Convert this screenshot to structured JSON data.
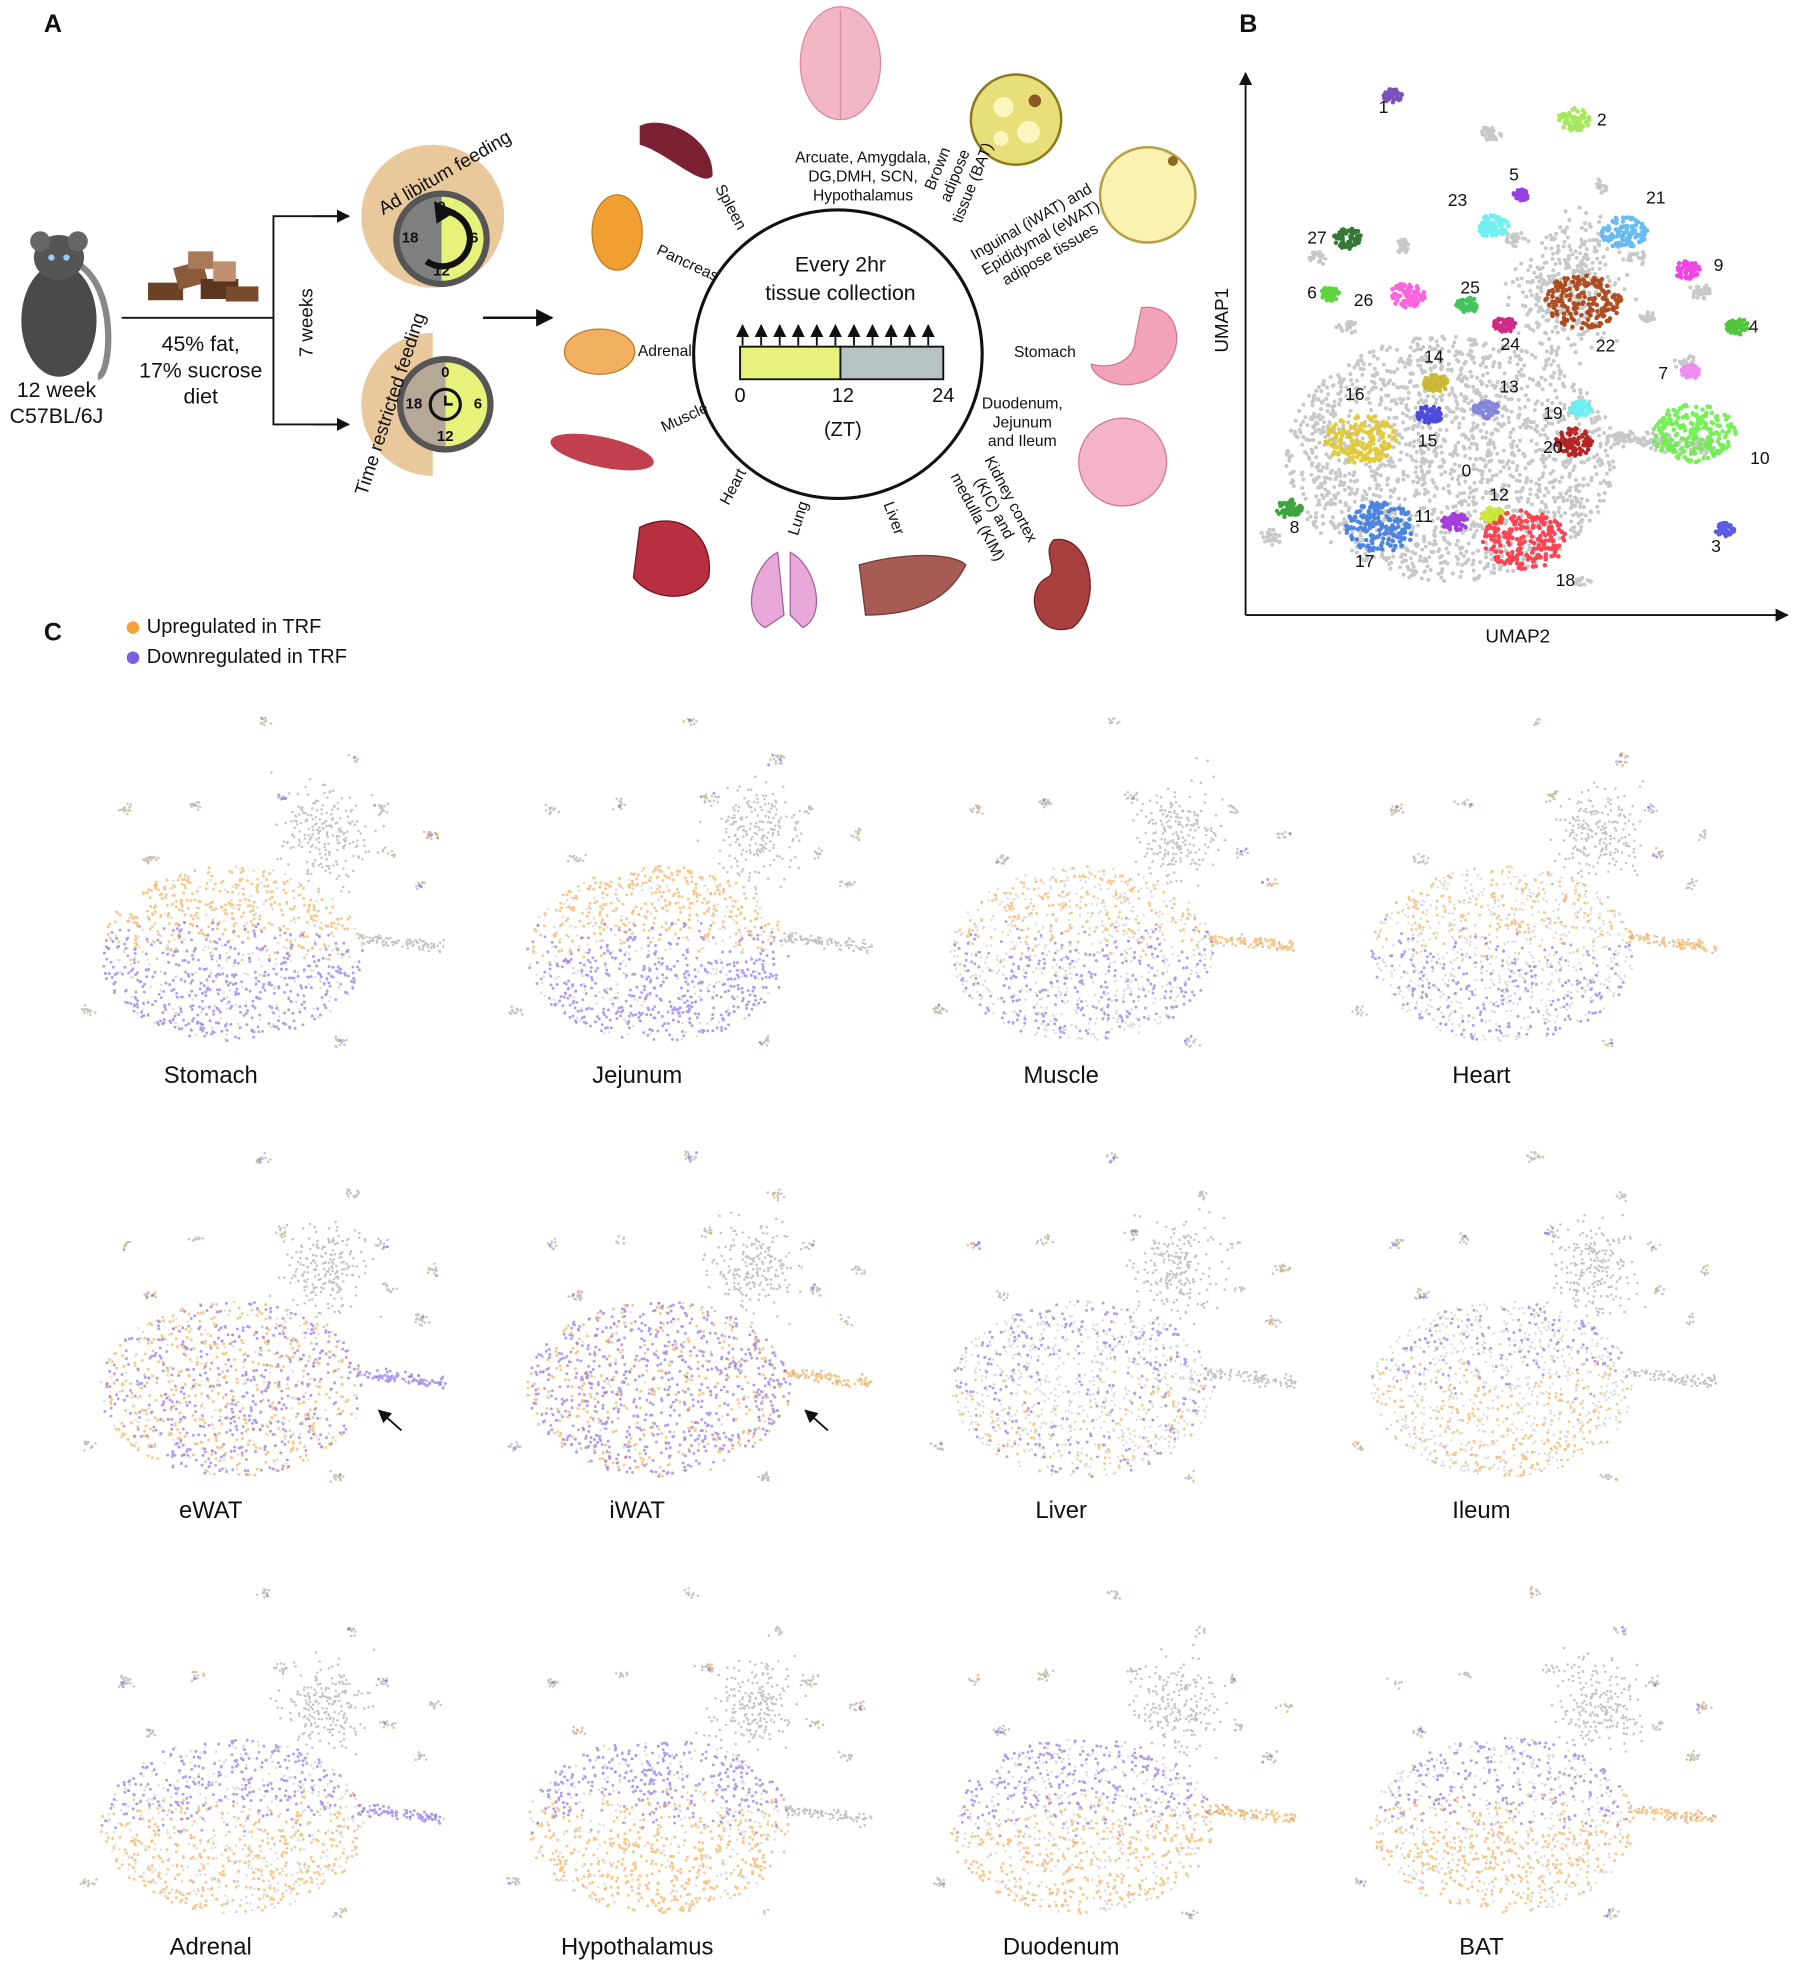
{
  "panel_labels": {
    "a": "A",
    "b": "B",
    "c": "C"
  },
  "panel_a": {
    "mouse_label": [
      "12 week",
      "C57BL/6J"
    ],
    "diet_label": [
      "45% fat,",
      "17% sucrose",
      "diet"
    ],
    "duration": "7 weeks",
    "feeding_groups": [
      {
        "name": "Ad libitum feeding",
        "clock_labels": [
          "0",
          "6",
          "12",
          "18"
        ]
      },
      {
        "name": "Time restricted feeding",
        "clock_labels": [
          "0",
          "6",
          "12",
          "18"
        ]
      }
    ],
    "collection": {
      "title": [
        "Every 2hr",
        "tissue collection"
      ],
      "ticks": [
        "0",
        "12",
        "24"
      ],
      "unit": "(ZT)"
    },
    "tissues": [
      {
        "lines": [
          "Arcuate, Amygdala,",
          "DG,DMH, SCN,",
          "Hypothalamus"
        ]
      },
      {
        "lines": [
          "Brown",
          "adipose",
          "tissue (BAT)"
        ]
      },
      {
        "lines": [
          "Inguinal (iWAT) and",
          "Epididymal (eWAT)",
          "adipose tissues"
        ]
      },
      {
        "lines": [
          "Stomach"
        ]
      },
      {
        "lines": [
          "Duodenum,",
          "Jejunum",
          "and Ileum"
        ]
      },
      {
        "lines": [
          "Kidney cortex",
          "(KIC) and",
          "medulla (KIM)"
        ]
      },
      {
        "lines": [
          "Liver"
        ]
      },
      {
        "lines": [
          "Lung"
        ]
      },
      {
        "lines": [
          "Heart"
        ]
      },
      {
        "lines": [
          "Muscle"
        ]
      },
      {
        "lines": [
          "Adrenal"
        ]
      },
      {
        "lines": [
          "Pancreas"
        ]
      },
      {
        "lines": [
          "Spleen"
        ]
      }
    ]
  },
  "panel_b": {
    "x_label": "UMAP2",
    "y_label": "UMAP1",
    "clusters": [
      "1",
      "2",
      "5",
      "23",
      "21",
      "27",
      "9",
      "6",
      "26",
      "25",
      "24",
      "22",
      "4",
      "7",
      "14",
      "16",
      "13",
      "19",
      "15",
      "10",
      "20",
      "0",
      "12",
      "11",
      "8",
      "3",
      "17",
      "18"
    ]
  },
  "panel_c": {
    "legend": [
      "Upregulated in TRF",
      "Downregulated in TRF"
    ],
    "tissues": [
      "Stomach",
      "Jejunum",
      "Muscle",
      "Heart",
      "eWAT",
      "iWAT",
      "Liver",
      "Ileum",
      "Adrenal",
      "Hypothalamus",
      "Duodenum",
      "BAT"
    ]
  }
}
